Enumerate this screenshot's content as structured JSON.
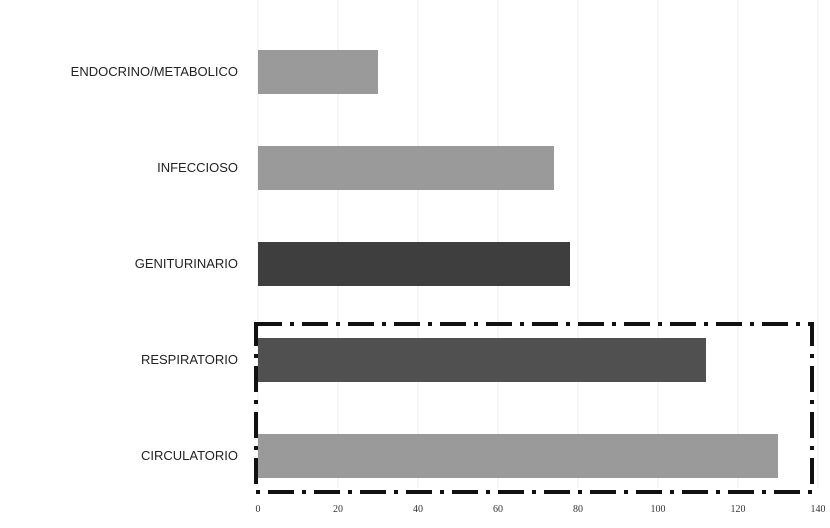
{
  "chart_data": {
    "type": "bar",
    "orientation": "horizontal",
    "categories": [
      "ENDOCRINO/METABOLICO",
      "INFECCIOSO",
      "GENITURINARIO",
      "RESPIRATORIO",
      "CIRCULATORIO"
    ],
    "values": [
      30,
      74,
      78,
      112,
      130
    ],
    "colors": [
      "#9a9a9a",
      "#9a9a9a",
      "#3e3e3e",
      "#505050",
      "#9a9a9a"
    ],
    "xlim": [
      0,
      140
    ],
    "xticks": [
      "0",
      "20",
      "40",
      "60",
      "80",
      "100",
      "120",
      "140"
    ],
    "grid": true,
    "highlight": {
      "categories": [
        "RESPIRATORIO",
        "CIRCULATORIO"
      ],
      "style": "dash-dot box"
    }
  }
}
